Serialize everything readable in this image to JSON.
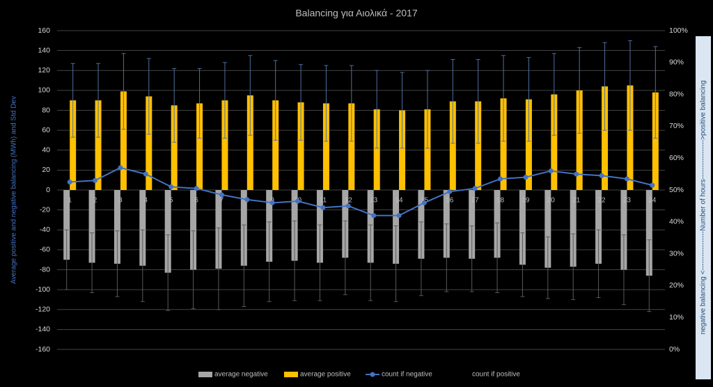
{
  "chart_data": {
    "type": "bar_line",
    "title": "Balancing για Αιολικά - 2017",
    "ylabel": "Average positive and negative balancing (MWh) and Std Dev",
    "y2label": "negative balancing <-----------------Number of hours----------------->positive  balancing",
    "categories": [
      "1",
      "2",
      "3",
      "4",
      "5",
      "6",
      "7",
      "8",
      "9",
      "10",
      "11",
      "12",
      "13",
      "14",
      "15",
      "16",
      "17",
      "18",
      "19",
      "20",
      "21",
      "22",
      "23",
      "24"
    ],
    "ylim": [
      -160,
      160
    ],
    "yticks": [
      -160,
      -140,
      -120,
      -100,
      -80,
      -60,
      -40,
      -20,
      0,
      20,
      40,
      60,
      80,
      100,
      120,
      140,
      160
    ],
    "y2lim": [
      0,
      100
    ],
    "y2ticks": [
      {
        "value": 0,
        "label": "0%"
      },
      {
        "value": 10,
        "label": "10%"
      },
      {
        "value": 20,
        "label": "20%"
      },
      {
        "value": 30,
        "label": "30%"
      },
      {
        "value": 40,
        "label": "40%"
      },
      {
        "value": 50,
        "label": "50%"
      },
      {
        "value": 60,
        "label": "60%"
      },
      {
        "value": 70,
        "label": "70%"
      },
      {
        "value": 80,
        "label": "80%"
      },
      {
        "value": 90,
        "label": "90%"
      },
      {
        "value": 100,
        "label": "100%"
      }
    ],
    "grid": true,
    "legend": "bottom",
    "series": [
      {
        "name": "average negative",
        "kind": "bar",
        "color": "#a6a6a6",
        "error_color": "#595959",
        "values": [
          -70,
          -73,
          -74,
          -76,
          -83,
          -80,
          -79,
          -76,
          -72,
          -71,
          -73,
          -68,
          -73,
          -74,
          -69,
          -68,
          -69,
          -68,
          -75,
          -78,
          -77,
          -74,
          -80,
          -86
        ],
        "errors": [
          30,
          30,
          33,
          36,
          38,
          39,
          41,
          41,
          40,
          40,
          38,
          37,
          38,
          38,
          37,
          34,
          33,
          35,
          32,
          31,
          33,
          34,
          35,
          36
        ]
      },
      {
        "name": "average positive",
        "kind": "bar",
        "color": "#ffc000",
        "error_color": "#4f6f9f",
        "values": [
          90,
          90,
          99,
          94,
          85,
          87,
          90,
          95,
          90,
          88,
          87,
          87,
          81,
          80,
          81,
          89,
          89,
          92,
          91,
          96,
          100,
          104,
          105,
          98
        ],
        "errors": [
          37,
          37,
          38,
          38,
          37,
          35,
          38,
          40,
          40,
          38,
          38,
          38,
          39,
          38,
          39,
          42,
          42,
          43,
          42,
          41,
          43,
          44,
          45,
          46
        ]
      },
      {
        "name": "count if negative",
        "kind": "line",
        "axis": "y2",
        "color": "#4472c4",
        "values": [
          52.5,
          53,
          57,
          55,
          51,
          50.5,
          48.5,
          47,
          46,
          46.5,
          44.5,
          45,
          42,
          42,
          46,
          49.5,
          50.5,
          53.5,
          54,
          56,
          55,
          54.5,
          53.5,
          51.5
        ]
      },
      {
        "name": "count if positive",
        "kind": "line",
        "axis": "y2",
        "color": "#000000",
        "values": [
          null,
          null,
          null,
          null,
          null,
          null,
          null,
          null,
          null,
          null,
          null,
          null,
          null,
          null,
          null,
          null,
          null,
          null,
          null,
          null,
          null,
          null,
          null,
          null
        ]
      }
    ]
  }
}
